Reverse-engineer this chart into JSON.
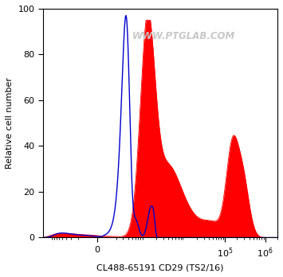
{
  "xlabel": "CL488-65191 CD29 (TS2/16)",
  "ylabel": "Relative cell number",
  "ylim": [
    0,
    100
  ],
  "background_color": "#ffffff",
  "red_fill_color": "#ff0000",
  "blue_line_color": "#0000cc",
  "watermark_color": "#c8c8c8",
  "watermark_text": "WWW.PTGLAB.COM",
  "linthresh": 100,
  "linscale": 0.15,
  "xlim_min": -1500,
  "xlim_max": 2000000,
  "yticks": [
    0,
    20,
    40,
    60,
    80,
    100
  ],
  "xtick_vals": [
    0,
    100000,
    1000000
  ],
  "xtick_labels": [
    "0",
    "$10^5$",
    "$10^6$"
  ]
}
